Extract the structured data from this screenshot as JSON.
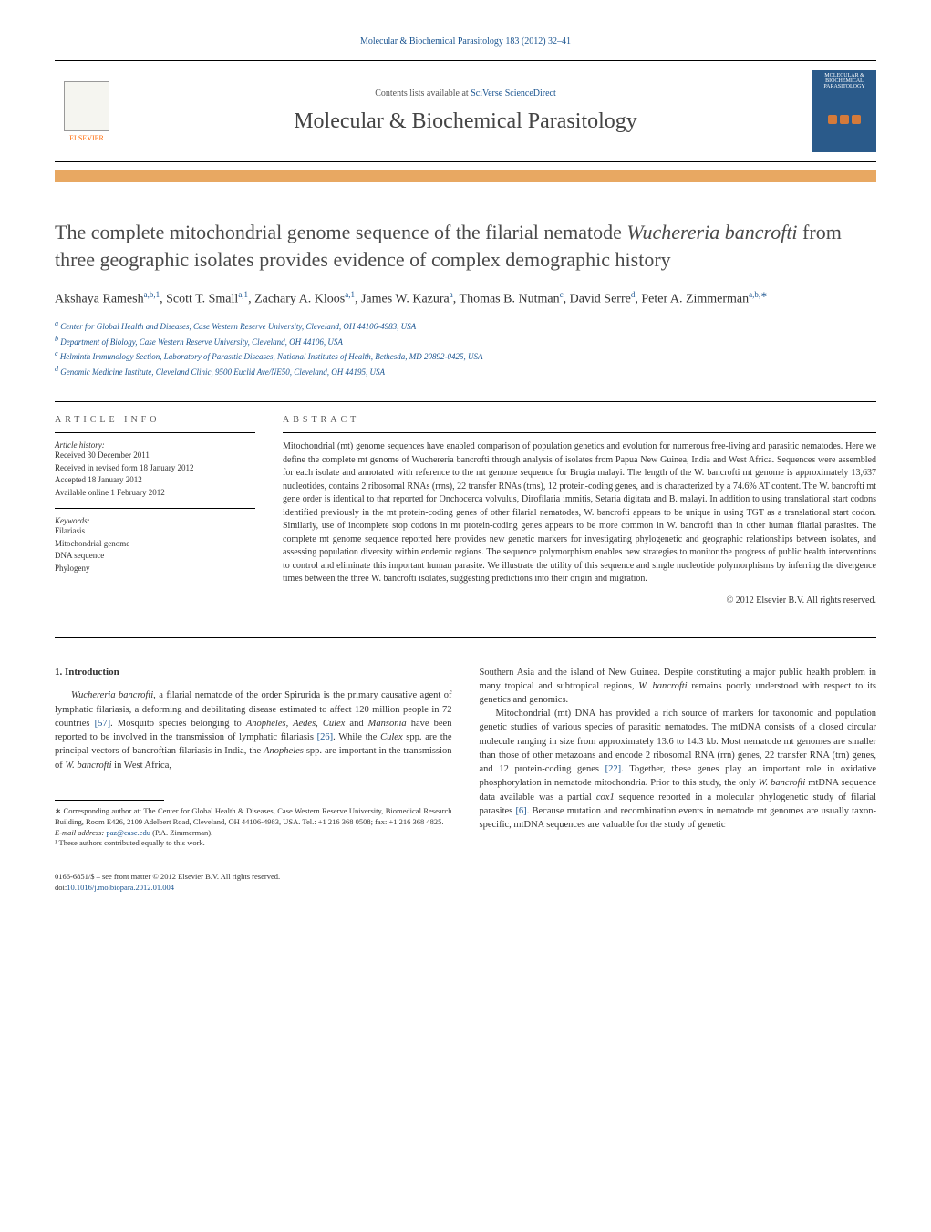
{
  "header": {
    "citation": "Molecular & Biochemical Parasitology 183 (2012) 32–41",
    "contents_prefix": "Contents lists available at ",
    "contents_link": "SciVerse ScienceDirect",
    "journal_name": "Molecular & Biochemical Parasitology",
    "elsevier_label": "ELSEVIER",
    "cover_text_top": "MOLECULAR & BIOCHEMICAL PARASITOLOGY"
  },
  "title": {
    "line1": "The complete mitochondrial genome sequence of the filarial nematode ",
    "italic": "Wuchereria bancrofti",
    "line2": " from three geographic isolates provides evidence of complex demographic history"
  },
  "authors": {
    "a1_name": "Akshaya Ramesh",
    "a1_sup": "a,b,1",
    "a2_name": "Scott T. Small",
    "a2_sup": "a,1",
    "a3_name": "Zachary A. Kloos",
    "a3_sup": "a,1",
    "a4_name": "James W. Kazura",
    "a4_sup": "a",
    "a5_name": "Thomas B. Nutman",
    "a5_sup": "c",
    "a6_name": "David Serre",
    "a6_sup": "d",
    "a7_name": "Peter A. Zimmerman",
    "a7_sup": "a,b,∗"
  },
  "affiliations": {
    "a": "Center for Global Health and Diseases, Case Western Reserve University, Cleveland, OH 44106-4983, USA",
    "b": "Department of Biology, Case Western Reserve University, Cleveland, OH 44106, USA",
    "c": "Helminth Immunology Section, Laboratory of Parasitic Diseases, National Institutes of Health, Bethesda, MD 20892-0425, USA",
    "d": "Genomic Medicine Institute, Cleveland Clinic, 9500 Euclid Ave/NE50, Cleveland, OH 44195, USA"
  },
  "article_info": {
    "heading": "ARTICLE INFO",
    "history_label": "Article history:",
    "received": "Received 30 December 2011",
    "revised": "Received in revised form 18 January 2012",
    "accepted": "Accepted 18 January 2012",
    "online": "Available online 1 February 2012",
    "keywords_label": "Keywords:",
    "kw1": "Filariasis",
    "kw2": "Mitochondrial genome",
    "kw3": "DNA sequence",
    "kw4": "Phylogeny"
  },
  "abstract": {
    "heading": "ABSTRACT",
    "text": "Mitochondrial (mt) genome sequences have enabled comparison of population genetics and evolution for numerous free-living and parasitic nematodes. Here we define the complete mt genome of Wuchereria bancrofti through analysis of isolates from Papua New Guinea, India and West Africa. Sequences were assembled for each isolate and annotated with reference to the mt genome sequence for Brugia malayi. The length of the W. bancrofti mt genome is approximately 13,637 nucleotides, contains 2 ribosomal RNAs (rrns), 22 transfer RNAs (trns), 12 protein-coding genes, and is characterized by a 74.6% AT content. The W. bancrofti mt gene order is identical to that reported for Onchocerca volvulus, Dirofilaria immitis, Setaria digitata and B. malayi. In addition to using translational start codons identified previously in the mt protein-coding genes of other filarial nematodes, W. bancrofti appears to be unique in using TGT as a translational start codon. Similarly, use of incomplete stop codons in mt protein-coding genes appears to be more common in W. bancrofti than in other human filarial parasites. The complete mt genome sequence reported here provides new genetic markers for investigating phylogenetic and geographic relationships between isolates, and assessing population diversity within endemic regions. The sequence polymorphism enables new strategies to monitor the progress of public health interventions to control and eliminate this important human parasite. We illustrate the utility of this sequence and single nucleotide polymorphisms by inferring the divergence times between the three W. bancrofti isolates, suggesting predictions into their origin and migration.",
    "copyright": "© 2012 Elsevier B.V. All rights reserved."
  },
  "intro": {
    "heading": "1. Introduction",
    "p1_pre": "Wuchereria bancrofti",
    "p1": ", a filarial nematode of the order Spirurida is the primary causative agent of lymphatic filariasis, a deforming and debilitating disease estimated to affect 120 million people in 72 countries ",
    "p1_ref1": "[57]",
    "p1_mid": ". Mosquito species belonging to ",
    "p1_it2": "Anopheles, Aedes, Culex",
    "p1_mid2": " and ",
    "p1_it3": "Mansonia",
    "p1_mid3": " have been reported to be involved in the transmission of lymphatic filariasis ",
    "p1_ref2": "[26]",
    "p1_mid4": ". While the ",
    "p1_it4": "Culex",
    "p1_mid5": " spp. are the principal vectors of bancroftian filariasis in India, the ",
    "p1_it5": "Anopheles",
    "p1_mid6": " spp. are important in the transmission of ",
    "p1_it6": "W. bancrofti",
    "p1_end": " in West Africa,",
    "p2_start": "Southern Asia and the island of New Guinea. Despite constituting a major public health problem in many tropical and subtropical regions, ",
    "p2_it1": "W. bancrofti",
    "p2_end": " remains poorly understood with respect to its genetics and genomics.",
    "p3": "Mitochondrial (mt) DNA has provided a rich source of markers for taxonomic and population genetic studies of various species of parasitic nematodes. The mtDNA consists of a closed circular molecule ranging in size from approximately 13.6 to 14.3 kb. Most nematode mt genomes are smaller than those of other metazoans and encode 2 ribosomal RNA (rrn) genes, 22 transfer RNA (trn) genes, and 12 protein-coding genes ",
    "p3_ref1": "[22]",
    "p3_mid": ". Together, these genes play an important role in oxidative phosphorylation in nematode mitochondria. Prior to this study, the only ",
    "p3_it1": "W. bancrofti",
    "p3_mid2": " mtDNA sequence data available was a partial ",
    "p3_it2": "cox1",
    "p3_mid3": " sequence reported in a molecular phylogenetic study of filarial parasites ",
    "p3_ref2": "[6]",
    "p3_end": ". Because mutation and recombination events in nematode mt genomes are usually taxon-specific, mtDNA sequences are valuable for the study of genetic"
  },
  "footnotes": {
    "corr": "∗ Corresponding author at: The Center for Global Health & Diseases, Case Western Reserve University, Biomedical Research Building, Room E426, 2109 Adelbert Road, Cleveland, OH 44106-4983, USA. Tel.: +1 216 368 0508; fax: +1 216 368 4825.",
    "email_label": "E-mail address: ",
    "email": "paz@case.edu",
    "email_suffix": " (P.A. Zimmerman).",
    "note1": "¹ These authors contributed equally to this work."
  },
  "bottom": {
    "line1": "0166-6851/$ – see front matter © 2012 Elsevier B.V. All rights reserved.",
    "doi_label": "doi:",
    "doi": "10.1016/j.molbiopara.2012.01.004"
  },
  "colors": {
    "link": "#1a5490",
    "orange_bar": "#e8a862",
    "elsevier_orange": "#ff6600",
    "cover_bg": "#2a5a8a"
  }
}
